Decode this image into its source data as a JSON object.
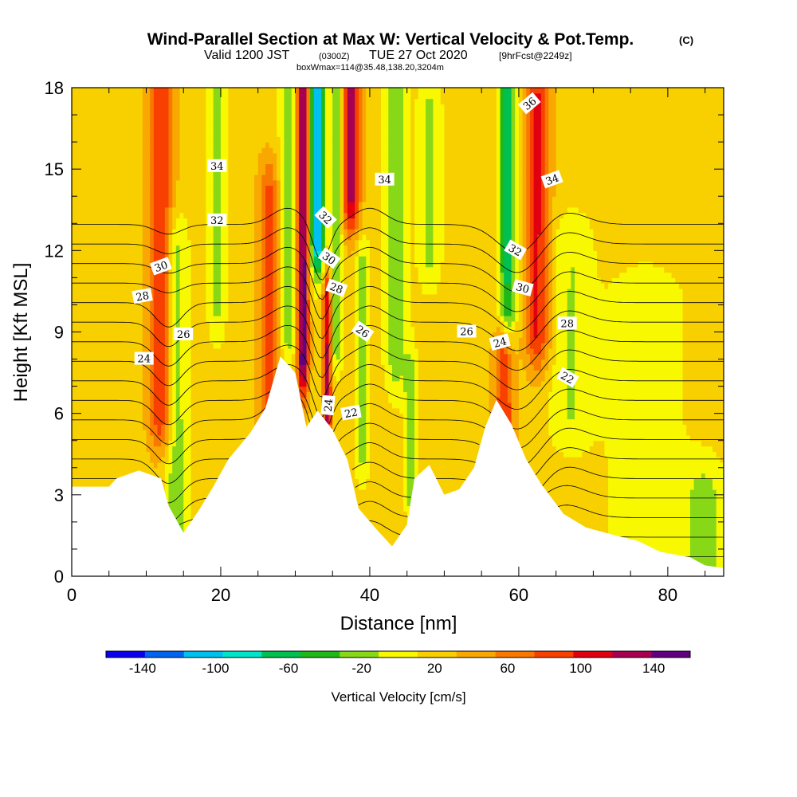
{
  "header": {
    "title": "Wind-Parallel Section at Max W: Vertical Velocity & Pot.Temp.",
    "copyright": "(C)",
    "valid_prefix": "Valid 1200 JST",
    "valid_utc": "(0300Z)",
    "valid_date": "TUE 27 Oct 2020",
    "forecast": "[9hrFcst@2249z]",
    "box_info": "boxWmax=114@35.48,138.20,3204m"
  },
  "chart_data": {
    "type": "heatmap",
    "xlabel": "Distance [nm]",
    "ylabel": "Height [Kft MSL]",
    "xlim": [
      0,
      87.5
    ],
    "ylim": [
      0,
      18
    ],
    "x_ticks": [
      "0",
      "20",
      "40",
      "60",
      "80"
    ],
    "y_ticks": [
      "0",
      "3",
      "6",
      "9",
      "12",
      "15",
      "18"
    ],
    "x_tick_values": [
      0,
      20,
      40,
      60,
      80
    ],
    "y_tick_values": [
      0,
      3,
      6,
      9,
      12,
      15,
      18
    ],
    "colorbar": {
      "label": "Vertical Velocity [cm/s]",
      "tick_labels": [
        "-140",
        "-100",
        "-60",
        "-20",
        "20",
        "60",
        "100",
        "140"
      ],
      "tick_values": [
        -140,
        -100,
        -60,
        -20,
        20,
        60,
        100,
        140
      ],
      "bounds": [
        -160,
        160
      ],
      "step": 20,
      "colors": [
        "#0a00f0",
        "#0064f0",
        "#00c0f0",
        "#00e4c8",
        "#00c050",
        "#20b818",
        "#88d818",
        "#f8f800",
        "#f8d000",
        "#f8a800",
        "#f87800",
        "#f84000",
        "#e00010",
        "#a80050",
        "#600080"
      ]
    },
    "terrain": [
      {
        "x": 0,
        "h": 3.3
      },
      {
        "x": 5,
        "h": 3.3
      },
      {
        "x": 6,
        "h": 3.6
      },
      {
        "x": 9,
        "h": 3.9
      },
      {
        "x": 12,
        "h": 3.6
      },
      {
        "x": 13,
        "h": 2.6
      },
      {
        "x": 15,
        "h": 1.6
      },
      {
        "x": 17,
        "h": 2.4
      },
      {
        "x": 19,
        "h": 3.3
      },
      {
        "x": 21,
        "h": 4.3
      },
      {
        "x": 24,
        "h": 5.3
      },
      {
        "x": 26,
        "h": 6.2
      },
      {
        "x": 28,
        "h": 8.1
      },
      {
        "x": 30,
        "h": 7.5
      },
      {
        "x": 31.5,
        "h": 5.5
      },
      {
        "x": 33,
        "h": 6.1
      },
      {
        "x": 35,
        "h": 5.4
      },
      {
        "x": 37,
        "h": 4.3
      },
      {
        "x": 38.5,
        "h": 2.5
      },
      {
        "x": 41,
        "h": 1.7
      },
      {
        "x": 43,
        "h": 1.1
      },
      {
        "x": 45,
        "h": 1.9
      },
      {
        "x": 46,
        "h": 3.6
      },
      {
        "x": 48,
        "h": 4.1
      },
      {
        "x": 50,
        "h": 3.0
      },
      {
        "x": 52,
        "h": 3.2
      },
      {
        "x": 54,
        "h": 4.0
      },
      {
        "x": 55.5,
        "h": 5.5
      },
      {
        "x": 57,
        "h": 6.5
      },
      {
        "x": 59,
        "h": 5.6
      },
      {
        "x": 61,
        "h": 4.3
      },
      {
        "x": 63,
        "h": 3.4
      },
      {
        "x": 66,
        "h": 2.3
      },
      {
        "x": 69,
        "h": 1.8
      },
      {
        "x": 73,
        "h": 1.5
      },
      {
        "x": 76,
        "h": 1.3
      },
      {
        "x": 79,
        "h": 0.9
      },
      {
        "x": 83,
        "h": 0.7
      },
      {
        "x": 85,
        "h": 0.4
      },
      {
        "x": 87.5,
        "h": 0.3
      }
    ],
    "bands": [
      {
        "x": 12.0,
        "w": 1.7,
        "amp": 70,
        "h0": 6,
        "h1": 18
      },
      {
        "x": 14.0,
        "w": 1.5,
        "amp": -45,
        "h0": 2,
        "h1": 12
      },
      {
        "x": 19.5,
        "w": 1.2,
        "amp": -35,
        "h0": 10,
        "h1": 18
      },
      {
        "x": 26.5,
        "w": 1.5,
        "amp": 55,
        "h0": 5,
        "h1": 14
      },
      {
        "x": 29.0,
        "w": 1.2,
        "amp": -40,
        "h0": 9,
        "h1": 18
      },
      {
        "x": 31.0,
        "w": 0.8,
        "amp": 125,
        "h0": 8,
        "h1": 18
      },
      {
        "x": 33.0,
        "w": 0.9,
        "amp": -130,
        "h0": 12.5,
        "h1": 18
      },
      {
        "x": 34.3,
        "w": 0.6,
        "amp": 95,
        "h0": 6,
        "h1": 10
      },
      {
        "x": 35.5,
        "w": 0.8,
        "amp": -55,
        "h0": 9,
        "h1": 18
      },
      {
        "x": 37.5,
        "w": 1.2,
        "amp": 95,
        "h0": 14,
        "h1": 18
      },
      {
        "x": 39.0,
        "w": 1.0,
        "amp": -45,
        "h0": 5,
        "h1": 11
      },
      {
        "x": 43.5,
        "w": 1.5,
        "amp": -40,
        "h0": 8,
        "h1": 18
      },
      {
        "x": 45.5,
        "w": 0.8,
        "amp": -45,
        "h0": 3.5,
        "h1": 7
      },
      {
        "x": 48.0,
        "w": 1.6,
        "amp": -35,
        "h0": 12,
        "h1": 17
      },
      {
        "x": 58.0,
        "w": 1.3,
        "amp": 70,
        "h0": 5.5,
        "h1": 8
      },
      {
        "x": 58.5,
        "w": 1.2,
        "amp": -75,
        "h0": 10,
        "h1": 18
      },
      {
        "x": 62.5,
        "w": 1.7,
        "amp": 75,
        "h0": 9,
        "h1": 17.5
      },
      {
        "x": 67.0,
        "w": 3.0,
        "amp": -30,
        "h0": 6,
        "h1": 12
      },
      {
        "x": 77.0,
        "w": 5.0,
        "amp": -28,
        "h0": 1,
        "h1": 10
      },
      {
        "x": 85.0,
        "w": 3.0,
        "amp": -35,
        "h0": 0,
        "h1": 3
      }
    ],
    "contour_levels": [
      14,
      16,
      18,
      20,
      21,
      22,
      23,
      24,
      25,
      26,
      27,
      28,
      29,
      30,
      31,
      32,
      33,
      34,
      35,
      36,
      37
    ],
    "contour_labels": [
      {
        "text": "34",
        "x": 19.5,
        "h": 15.1,
        "angle": 0
      },
      {
        "text": "32",
        "x": 19.5,
        "h": 13.1,
        "angle": 0
      },
      {
        "text": "30",
        "x": 12.0,
        "h": 11.4,
        "angle": -20
      },
      {
        "text": "28",
        "x": 9.5,
        "h": 10.3,
        "angle": -10
      },
      {
        "text": "26",
        "x": 15.0,
        "h": 8.9,
        "angle": 0
      },
      {
        "text": "24",
        "x": 9.7,
        "h": 8.0,
        "angle": 0
      },
      {
        "text": "32",
        "x": 34.0,
        "h": 13.2,
        "angle": 45
      },
      {
        "text": "30",
        "x": 34.5,
        "h": 11.7,
        "angle": 35
      },
      {
        "text": "28",
        "x": 35.5,
        "h": 10.6,
        "angle": 20
      },
      {
        "text": "26",
        "x": 39.0,
        "h": 9.0,
        "angle": 35
      },
      {
        "text": "24",
        "x": 34.5,
        "h": 6.3,
        "angle": -85
      },
      {
        "text": "22",
        "x": 37.5,
        "h": 6.0,
        "angle": -10
      },
      {
        "text": "34",
        "x": 42.0,
        "h": 14.6,
        "angle": 0
      },
      {
        "text": "26",
        "x": 53.0,
        "h": 9.0,
        "angle": 0
      },
      {
        "text": "24",
        "x": 57.5,
        "h": 8.6,
        "angle": -15
      },
      {
        "text": "32",
        "x": 59.5,
        "h": 12.0,
        "angle": 30
      },
      {
        "text": "30",
        "x": 60.5,
        "h": 10.6,
        "angle": 15
      },
      {
        "text": "28",
        "x": 66.5,
        "h": 9.3,
        "angle": 0
      },
      {
        "text": "22",
        "x": 66.5,
        "h": 7.3,
        "angle": 30
      },
      {
        "text": "34",
        "x": 64.5,
        "h": 14.6,
        "angle": -20
      },
      {
        "text": "36",
        "x": 61.5,
        "h": 17.4,
        "angle": -40
      }
    ]
  }
}
